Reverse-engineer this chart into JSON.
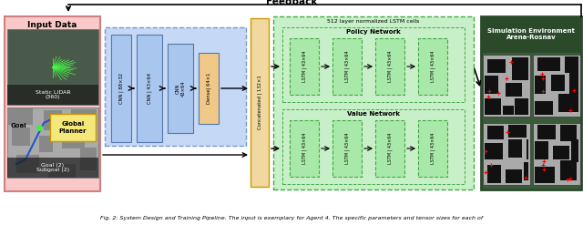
{
  "title": "Feedback",
  "caption": "Fig. 2: System Design and Training Pipeline. The input is exemplary for Agent 4. The specific parameters and tensor sizes for each of",
  "input_data_label": "Input Data",
  "lidar_label": "Static LIDAR\n(360)",
  "goal_label": "Goal (2)\nSubgoal (2)",
  "goal_text": "Goal",
  "global_planner_text": "Global\nPlanner",
  "cnn_labels": [
    "CNN | 88×32",
    "CNN | 43×64",
    "CNN\n43×64",
    "Dense| 64×1"
  ],
  "concat_label": "Concatenated | 132×1",
  "lstm_header": "512 layer normalized LSTM cells",
  "policy_label": "Policy Network",
  "value_label": "Value Network",
  "lstm_policy": [
    "LSTM | 43×64",
    "LSTM | 43×64",
    "LSTM | 43×64",
    "LSTM | 43×64"
  ],
  "lstm_value": [
    "LSTM | 43×64",
    "LSTM | 43×64",
    "LSTM | 43×64",
    "LSTM | 43×64"
  ],
  "sim_label": "Simulation Environment\nArena-Rosnav",
  "colors": {
    "input_box": "#f9c8c8",
    "cnn_outer_box": "#c5d8f5",
    "cnn_block1": "#a8c6ee",
    "cnn_block2": "#a8c6ee",
    "cnn_block3": "#a8c6ee",
    "dense_block": "#f0c888",
    "concat_block": "#f0d8a0",
    "lstm_box": "#c8f0c8",
    "lstm_block": "#a8e8a8",
    "sim_box_fill": "#3a5a3a",
    "sim_header_fill": "#1a3a1a",
    "map_bg": "#999999",
    "map_black": "#111111",
    "background": "#ffffff"
  }
}
